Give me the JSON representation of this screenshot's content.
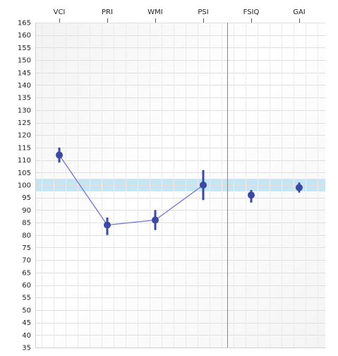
{
  "chart_data": {
    "type": "scatter",
    "categories": [
      "VCI",
      "PRI",
      "WMI",
      "PSI",
      "FSIQ",
      "GAI"
    ],
    "ylim": [
      35,
      165
    ],
    "y_ticks": [
      165,
      160,
      155,
      150,
      145,
      140,
      135,
      130,
      125,
      120,
      115,
      110,
      105,
      100,
      95,
      90,
      85,
      80,
      75,
      70,
      65,
      60,
      55,
      50,
      45,
      40,
      35
    ],
    "series": [
      {
        "points": [
          {
            "category": "VCI",
            "value": 112,
            "ci": [
              109,
              115
            ]
          },
          {
            "category": "PRI",
            "value": 84,
            "ci": [
              80,
              87
            ]
          },
          {
            "category": "WMI",
            "value": 86,
            "ci": [
              82,
              90
            ]
          },
          {
            "category": "PSI",
            "value": 100,
            "ci": [
              94,
              106
            ]
          },
          {
            "category": "FSIQ",
            "value": 96,
            "ci": [
              93,
              98
            ]
          },
          {
            "category": "GAI",
            "value": 99,
            "ci": [
              97,
              101
            ]
          }
        ],
        "connected_groups": [
          [
            "VCI",
            "PRI",
            "WMI",
            "PSI"
          ]
        ]
      }
    ],
    "reference_band": [
      97.5,
      102.5
    ],
    "divider_after_category": "PSI",
    "grid": true,
    "colors": {
      "point": "#3a48a8",
      "line": "#7276cc",
      "band": "#c5e5f5",
      "grid": "#dedede",
      "divider": "#888888"
    }
  }
}
